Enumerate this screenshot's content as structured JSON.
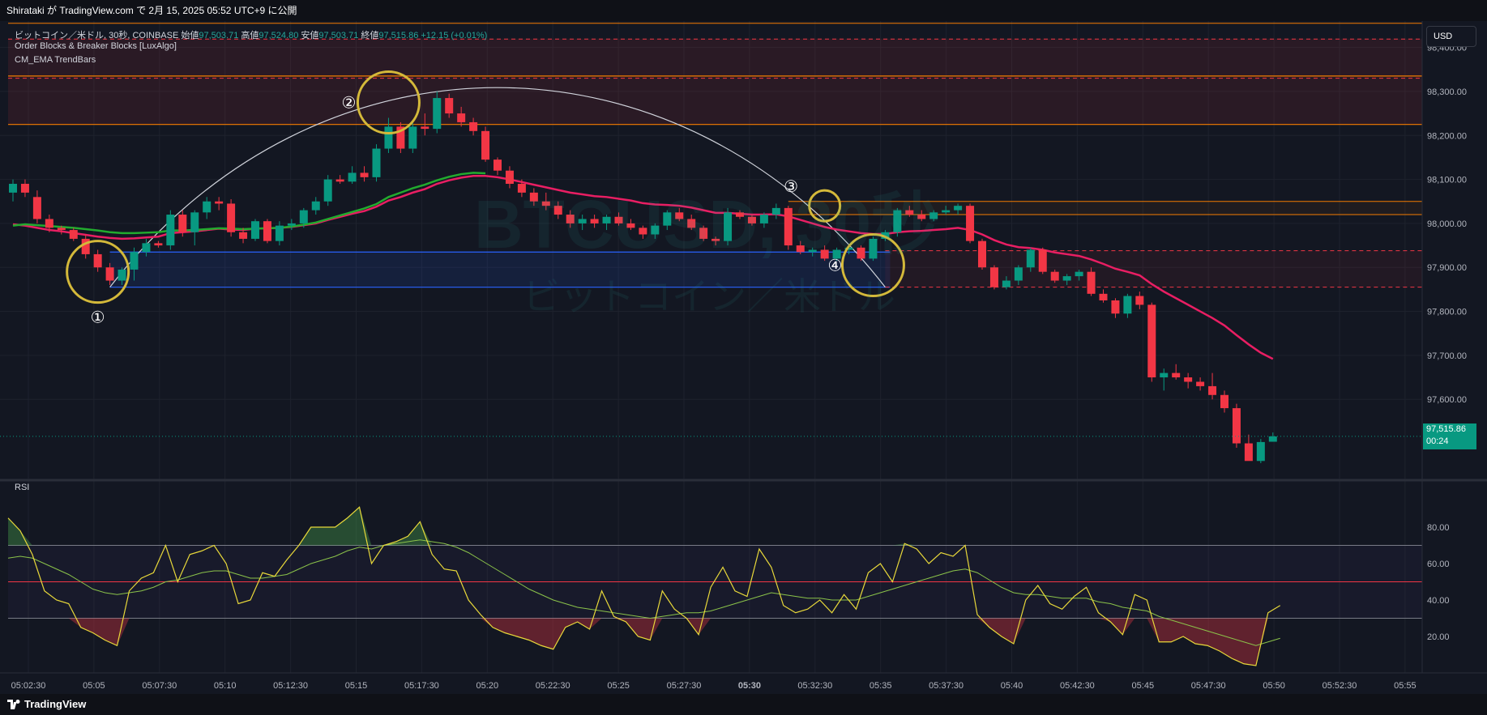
{
  "header": {
    "publish_text": "Shirataki が TradingView.com で 2月 15, 2025 05:52 UTC+9 に公開"
  },
  "legend": {
    "symbol": "ビットコイン／米ドル, 30秒, COINBASE",
    "open_label": "始値",
    "open": "97,503.71",
    "high_label": "高値",
    "high": "97,524.80",
    "low_label": "安値",
    "low": "97,503.71",
    "close_label": "終値",
    "close": "97,515.86",
    "change": "+12.15 (+0.01%)",
    "indicator1": "Order Blocks & Breaker Blocks [LuxAlgo]",
    "indicator2": "CM_EMA TrendBars",
    "rsi_title": "RSI"
  },
  "watermark": {
    "line1": "BTCUSD, 30秒",
    "line2": "ビットコイン／米ドル"
  },
  "currency_button": "USD",
  "last_price": {
    "price": "97,515.86",
    "countdown": "00:24"
  },
  "footer": {
    "brand": "TradingView"
  },
  "colors": {
    "up": "#089981",
    "down": "#f23645",
    "ema_slow": "#e91e63",
    "ema_fast": "#22ab2e",
    "rsi": "#e8d83a",
    "rsi_ma": "#8bc34a",
    "circle": "#d4b93a",
    "ob_line": "#f57c00",
    "blue": "#2962ff"
  },
  "chart_data": {
    "type": "candlestick",
    "timeframe": "30s",
    "price_axis": {
      "ylim": [
        97420,
        98460
      ],
      "ticks": [
        98400,
        98300,
        98200,
        98100,
        98000,
        97900,
        97800,
        97700,
        97600
      ],
      "tick_labels": [
        "98,400.00",
        "98,300.00",
        "98,200.00",
        "98,100.00",
        "98,000.00",
        "97,900.00",
        "97,800.00",
        "97,700.00",
        "97,600.00"
      ]
    },
    "time_axis": {
      "labels": [
        "05:02:30",
        "05:05",
        "05:07:30",
        "05:10",
        "05:12:30",
        "05:15",
        "05:17:30",
        "05:20",
        "05:22:30",
        "05:25",
        "05:27:30",
        "05:30",
        "05:32:30",
        "05:35",
        "05:37:30",
        "05:40",
        "05:42:30",
        "05:45",
        "05:47:30",
        "05:50",
        "05:52:30",
        "05:55"
      ],
      "bold": [
        "05:30"
      ]
    },
    "candles": [
      [
        98070,
        98100,
        98050,
        98090
      ],
      [
        98090,
        98100,
        98060,
        98070
      ],
      [
        98060,
        98075,
        98000,
        98010
      ],
      [
        98010,
        98020,
        97980,
        97990
      ],
      [
        97990,
        97995,
        97975,
        97985
      ],
      [
        97985,
        97990,
        97960,
        97965
      ],
      [
        97965,
        97975,
        97920,
        97930
      ],
      [
        97930,
        97940,
        97890,
        97900
      ],
      [
        97900,
        97910,
        97860,
        97870
      ],
      [
        97870,
        97900,
        97860,
        97895
      ],
      [
        97895,
        97945,
        97870,
        97935
      ],
      [
        97935,
        97965,
        97925,
        97955
      ],
      [
        97955,
        97960,
        97945,
        97950
      ],
      [
        97950,
        98030,
        97940,
        98020
      ],
      [
        98020,
        98030,
        97970,
        97980
      ],
      [
        97980,
        98030,
        97950,
        98025
      ],
      [
        98025,
        98060,
        98010,
        98050
      ],
      [
        98050,
        98060,
        98030,
        98045
      ],
      [
        98045,
        98055,
        97970,
        97980
      ],
      [
        97980,
        97990,
        97955,
        97965
      ],
      [
        97965,
        98010,
        97960,
        98005
      ],
      [
        98005,
        98010,
        97955,
        97960
      ],
      [
        97960,
        98005,
        97950,
        97995
      ],
      [
        97995,
        98010,
        97985,
        98000
      ],
      [
        98000,
        98035,
        97990,
        98030
      ],
      [
        98030,
        98060,
        98020,
        98050
      ],
      [
        98050,
        98110,
        98040,
        98100
      ],
      [
        98100,
        98110,
        98090,
        98095
      ],
      [
        98095,
        98130,
        98090,
        98115
      ],
      [
        98115,
        98130,
        98095,
        98105
      ],
      [
        98105,
        98180,
        98095,
        98170
      ],
      [
        98170,
        98240,
        98160,
        98220
      ],
      [
        98220,
        98230,
        98160,
        98170
      ],
      [
        98170,
        98230,
        98160,
        98220
      ],
      [
        98220,
        98250,
        98200,
        98215
      ],
      [
        98215,
        98300,
        98205,
        98285
      ],
      [
        98285,
        98295,
        98240,
        98250
      ],
      [
        98250,
        98265,
        98220,
        98230
      ],
      [
        98230,
        98240,
        98200,
        98210
      ],
      [
        98210,
        98220,
        98140,
        98145
      ],
      [
        98145,
        98150,
        98110,
        98120
      ],
      [
        98120,
        98130,
        98080,
        98090
      ],
      [
        98090,
        98100,
        98060,
        98070
      ],
      [
        98070,
        98080,
        98040,
        98050
      ],
      [
        98050,
        98070,
        98030,
        98040
      ],
      [
        98040,
        98050,
        98010,
        98020
      ],
      [
        98020,
        98030,
        97990,
        98000
      ],
      [
        98000,
        98020,
        97985,
        98010
      ],
      [
        98010,
        98020,
        97990,
        98000
      ],
      [
        98000,
        98020,
        97985,
        98015
      ],
      [
        98015,
        98025,
        97995,
        98000
      ],
      [
        98000,
        98010,
        97985,
        97990
      ],
      [
        97990,
        97995,
        97965,
        97975
      ],
      [
        97975,
        98000,
        97965,
        97995
      ],
      [
        97995,
        98030,
        97985,
        98025
      ],
      [
        98025,
        98035,
        98005,
        98010
      ],
      [
        98010,
        98020,
        97985,
        97990
      ],
      [
        97990,
        97995,
        97960,
        97965
      ],
      [
        97965,
        97970,
        97950,
        97960
      ],
      [
        97960,
        98035,
        97950,
        98025
      ],
      [
        98025,
        98030,
        98010,
        98015
      ],
      [
        98015,
        98020,
        97995,
        98000
      ],
      [
        98000,
        98025,
        97990,
        98020
      ],
      [
        98020,
        98045,
        98010,
        98035
      ],
      [
        98035,
        98040,
        97940,
        97950
      ],
      [
        97950,
        97960,
        97930,
        97935
      ],
      [
        97935,
        97945,
        97925,
        97940
      ],
      [
        97940,
        97950,
        97915,
        97920
      ],
      [
        97920,
        97945,
        97915,
        97940
      ],
      [
        97940,
        97950,
        97930,
        97945
      ],
      [
        97945,
        97950,
        97915,
        97920
      ],
      [
        97920,
        97970,
        97915,
        97965
      ],
      [
        97965,
        97985,
        97960,
        97980
      ],
      [
        97980,
        98035,
        97970,
        98030
      ],
      [
        98030,
        98040,
        98015,
        98020
      ],
      [
        98020,
        98030,
        98005,
        98010
      ],
      [
        98010,
        98030,
        98005,
        98025
      ],
      [
        98025,
        98040,
        98020,
        98030
      ],
      [
        98030,
        98045,
        98020,
        98040
      ],
      [
        98040,
        98045,
        97955,
        97960
      ],
      [
        97960,
        97965,
        97895,
        97900
      ],
      [
        97900,
        97905,
        97850,
        97855
      ],
      [
        97855,
        97880,
        97850,
        97870
      ],
      [
        97870,
        97905,
        97860,
        97900
      ],
      [
        97900,
        97945,
        97890,
        97940
      ],
      [
        97940,
        97945,
        97885,
        97890
      ],
      [
        97890,
        97895,
        97865,
        97870
      ],
      [
        97870,
        97885,
        97860,
        97880
      ],
      [
        97880,
        97895,
        97870,
        97890
      ],
      [
        97890,
        97900,
        97835,
        97840
      ],
      [
        97840,
        97850,
        97820,
        97825
      ],
      [
        97825,
        97830,
        97785,
        97795
      ],
      [
        97795,
        97840,
        97785,
        97835
      ],
      [
        97835,
        97845,
        97805,
        97815
      ],
      [
        97815,
        97820,
        97640,
        97650
      ],
      [
        97650,
        97670,
        97620,
        97660
      ],
      [
        97660,
        97680,
        97645,
        97650
      ],
      [
        97650,
        97660,
        97625,
        97640
      ],
      [
        97640,
        97650,
        97620,
        97630
      ],
      [
        97630,
        97660,
        97600,
        97610
      ],
      [
        97610,
        97620,
        97570,
        97580
      ],
      [
        97580,
        97590,
        97490,
        97500
      ],
      [
        97500,
        97520,
        97465,
        97460
      ],
      [
        97460,
        97510,
        97455,
        97503
      ],
      [
        97503.71,
        97524.8,
        97503.71,
        97515.86
      ]
    ],
    "ema_slow": [
      97998,
      97995,
      97990,
      97985,
      97982,
      97978,
      97974,
      97970,
      97967,
      97965,
      97966,
      97968,
      97970,
      97978,
      97980,
      97982,
      97985,
      97988,
      97986,
      97985,
      97988,
      97989,
      97990,
      97992,
      97996,
      98000,
      98008,
      98015,
      98022,
      98028,
      98038,
      98052,
      98060,
      98070,
      98078,
      98090,
      98098,
      98104,
      98108,
      98108,
      98105,
      98100,
      98094,
      98088,
      98082,
      98076,
      98070,
      98066,
      98062,
      98060,
      98056,
      98052,
      98046,
      98043,
      98042,
      98040,
      98036,
      98030,
      98024,
      98024,
      98022,
      98020,
      98020,
      98021,
      98016,
      98008,
      98000,
      97992,
      97986,
      97982,
      97978,
      97976,
      97976,
      97980,
      97982,
      97983,
      97985,
      97987,
      97990,
      97985,
      97975,
      97962,
      97952,
      97946,
      97944,
      97940,
      97934,
      97930,
      97926,
      97918,
      97908,
      97897,
      97890,
      97882,
      97862,
      97845,
      97830,
      97815,
      97800,
      97785,
      97768,
      97746,
      97725,
      97706,
      97692
    ],
    "ema_fast": [
      97995,
      97998,
      97996,
      97994,
      97992,
      97990,
      97987,
      97984,
      97980,
      97978,
      97978,
      97979,
      97980,
      97984,
      97984,
      97985,
      97987,
      97989,
      97988,
      97987,
      97988,
      97989,
      97990,
      97993,
      97997,
      98002,
      98010,
      98018,
      98026,
      98034,
      98044,
      98060,
      98070,
      98080,
      98088,
      98098,
      98106,
      98112,
      98115,
      98114
    ],
    "rsi": {
      "ylim": [
        0,
        100
      ],
      "ticks": [
        80,
        60,
        40,
        20
      ],
      "levels": {
        "upper": 70,
        "middle": 50,
        "lower": 30
      },
      "values": [
        85,
        78,
        65,
        45,
        40,
        38,
        25,
        22,
        18,
        15,
        45,
        52,
        55,
        70,
        50,
        65,
        67,
        70,
        60,
        38,
        40,
        55,
        53,
        62,
        70,
        80,
        80,
        80,
        85,
        91,
        60,
        70,
        72,
        75,
        83,
        65,
        57,
        56,
        40,
        32,
        25,
        22,
        20,
        18,
        15,
        13,
        25,
        28,
        24,
        45,
        31,
        28,
        20,
        18,
        45,
        35,
        30,
        21,
        47,
        58,
        45,
        42,
        68,
        58,
        37,
        33,
        35,
        40,
        33,
        43,
        35,
        55,
        60,
        50,
        71,
        68,
        60,
        66,
        64,
        70,
        32,
        25,
        20,
        16,
        40,
        48,
        38,
        35,
        42,
        47,
        33,
        28,
        21,
        43,
        40,
        17,
        17,
        20,
        16,
        15,
        12,
        8,
        5,
        4,
        33,
        37
      ],
      "ma_values": [
        63,
        64,
        63,
        60,
        57,
        54,
        50,
        46,
        44,
        43,
        44,
        45,
        47,
        50,
        51,
        53,
        55,
        56,
        56,
        54,
        52,
        52,
        53,
        54,
        57,
        60,
        62,
        64,
        67,
        69,
        68,
        70,
        71,
        72,
        73,
        72,
        71,
        69,
        66,
        62,
        58,
        54,
        50,
        46,
        43,
        40,
        38,
        36,
        35,
        34,
        33,
        32,
        31,
        30,
        31,
        32,
        33,
        33,
        34,
        36,
        38,
        40,
        42,
        44,
        43,
        42,
        41,
        41,
        40,
        40,
        40,
        42,
        44,
        46,
        48,
        50,
        52,
        54,
        56,
        57,
        55,
        51,
        47,
        44,
        43,
        43,
        42,
        41,
        41,
        41,
        39,
        38,
        36,
        35,
        34,
        31,
        29,
        27,
        25,
        23,
        21,
        19,
        17,
        15,
        17,
        19
      ]
    },
    "annotations": [
      "①",
      "②",
      "③",
      "④"
    ]
  }
}
